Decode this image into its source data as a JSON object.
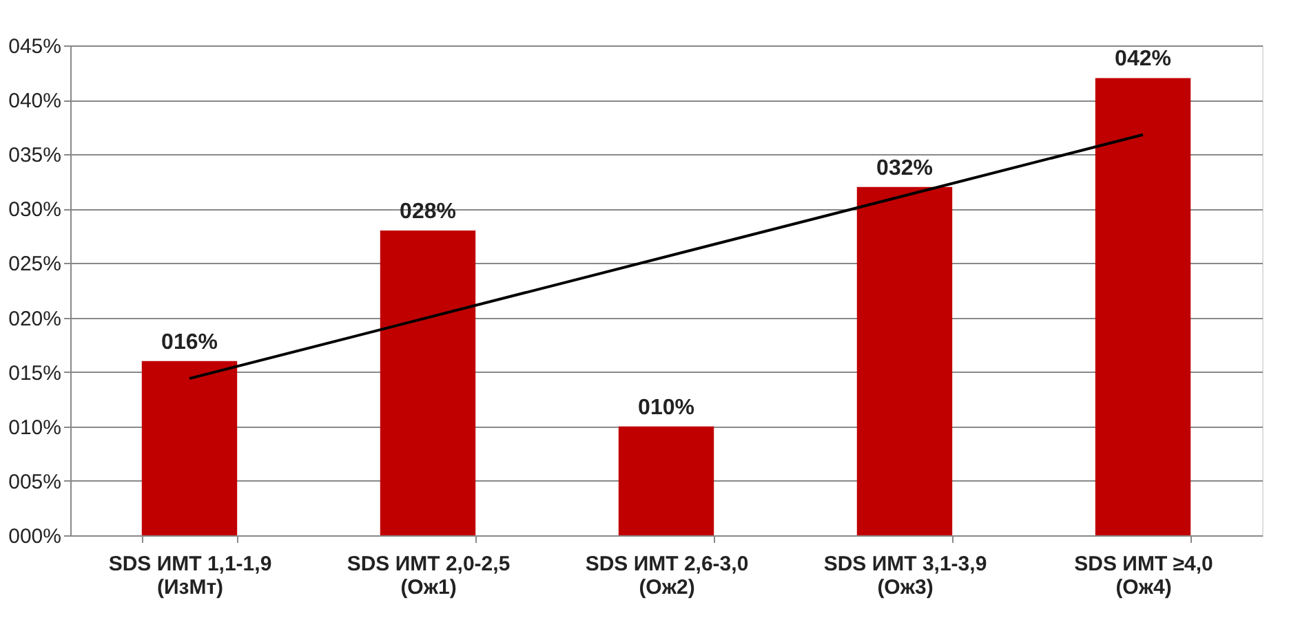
{
  "chart_data": {
    "type": "bar",
    "categories": [
      "SDS ИМТ 1,1-1,9\n(ИзМт)",
      "SDS ИМТ 2,0-2,5\n(Ож1)",
      "SDS ИМТ 2,6-3,0\n(Ож2)",
      "SDS ИМТ 3,1-3,9\n(Ож3)",
      "SDS ИМТ ≥4,0\n(Ож4)"
    ],
    "series": [
      {
        "color": "#c00000",
        "values": [
          16,
          28,
          10,
          32,
          42
        ],
        "value_labels": [
          "016%",
          "028%",
          "010%",
          "032%",
          "042%"
        ]
      },
      {
        "type": "line",
        "color": "#000000",
        "x": [
          "SDS ИМТ 1,1-1,9\n(ИзМт)",
          "SDS ИМТ ≥4,0\n(Ож4)"
        ],
        "values": [
          14.4,
          36.8
        ]
      }
    ],
    "ylim": [
      0,
      45
    ],
    "yticks": [
      {
        "value": 0,
        "label": "000%"
      },
      {
        "value": 5,
        "label": "005%"
      },
      {
        "value": 10,
        "label": "010%"
      },
      {
        "value": 15,
        "label": "015%"
      },
      {
        "value": 20,
        "label": "020%"
      },
      {
        "value": 25,
        "label": "025%"
      },
      {
        "value": 30,
        "label": "030%"
      },
      {
        "value": 35,
        "label": "035%"
      },
      {
        "value": 40,
        "label": "040%"
      },
      {
        "value": 45,
        "label": "045%"
      }
    ],
    "grid": "y"
  }
}
